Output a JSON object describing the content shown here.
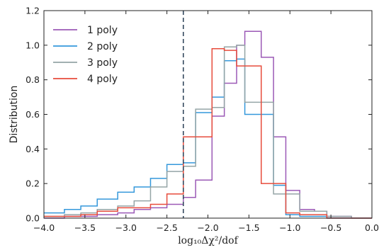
{
  "chart_data": {
    "type": "line",
    "title": "",
    "xlabel": "log₁₀Δχ²/dof",
    "ylabel": "Distribution",
    "xlim": [
      -4.0,
      0.0
    ],
    "ylim": [
      0.0,
      1.2
    ],
    "grid": false,
    "legend_position": "top-left",
    "x_ticks": [
      -4.0,
      -3.5,
      -3.0,
      -2.5,
      -2.0,
      -1.5,
      -1.0,
      -0.5,
      0.0
    ],
    "x_tick_labels": [
      "−4.0",
      "−3.5",
      "−3.0",
      "−2.5",
      "−2.0",
      "−1.5",
      "−1.0",
      "−0.5",
      "0.0"
    ],
    "y_ticks": [
      0.0,
      0.2,
      0.4,
      0.6,
      0.8,
      1.0,
      1.2
    ],
    "y_tick_labels": [
      "0.0",
      "0.2",
      "0.4",
      "0.6",
      "0.8",
      "1.0",
      "1.2"
    ],
    "vline": {
      "x": -2.3,
      "style": "dashed",
      "color": "#34495e"
    },
    "series": [
      {
        "name": "1 poly",
        "color": "#9b59b6",
        "edges": [
          -4.0,
          -3.75,
          -3.55,
          -3.35,
          -3.1,
          -2.9,
          -2.7,
          -2.5,
          -2.3,
          -2.15,
          -1.95,
          -1.8,
          -1.65,
          -1.55,
          -1.35,
          -1.2,
          -1.05,
          -0.88,
          -0.7,
          -0.55,
          -0.25,
          0.0
        ],
        "values": [
          0.0,
          0.01,
          0.01,
          0.02,
          0.03,
          0.05,
          0.06,
          0.08,
          0.12,
          0.22,
          0.59,
          0.78,
          1.0,
          1.08,
          0.93,
          0.47,
          0.16,
          0.05,
          0.04,
          0.01,
          0.0
        ]
      },
      {
        "name": "2 poly",
        "color": "#3498db",
        "edges": [
          -4.0,
          -3.75,
          -3.55,
          -3.35,
          -3.1,
          -2.9,
          -2.7,
          -2.5,
          -2.3,
          -2.15,
          -1.95,
          -1.8,
          -1.65,
          -1.55,
          -1.35,
          -1.2,
          -1.05,
          -0.88,
          -0.7,
          -0.55,
          -0.25,
          0.0
        ],
        "values": [
          0.03,
          0.05,
          0.07,
          0.11,
          0.15,
          0.18,
          0.23,
          0.31,
          0.32,
          0.61,
          0.7,
          0.91,
          0.92,
          0.6,
          0.6,
          0.19,
          0.02,
          0.01,
          0.01,
          0.0,
          0.0
        ]
      },
      {
        "name": "3 poly",
        "color": "#95a5a6",
        "edges": [
          -4.0,
          -3.75,
          -3.55,
          -3.35,
          -3.1,
          -2.9,
          -2.7,
          -2.5,
          -2.3,
          -2.15,
          -1.95,
          -1.8,
          -1.65,
          -1.55,
          -1.35,
          -1.2,
          -1.05,
          -0.88,
          -0.7,
          -0.55,
          -0.25,
          0.0
        ],
        "values": [
          0.01,
          0.02,
          0.03,
          0.05,
          0.07,
          0.1,
          0.18,
          0.27,
          0.3,
          0.63,
          0.64,
          0.99,
          1.0,
          0.67,
          0.67,
          0.14,
          0.14,
          0.04,
          0.04,
          0.01,
          0.0
        ]
      },
      {
        "name": "4 poly",
        "color": "#e74c3c",
        "edges": [
          -4.0,
          -3.75,
          -3.55,
          -3.35,
          -3.1,
          -2.9,
          -2.7,
          -2.5,
          -2.3,
          -2.15,
          -1.95,
          -1.8,
          -1.65,
          -1.55,
          -1.35,
          -1.2,
          -1.05,
          -0.88,
          -0.7,
          -0.55,
          -0.25,
          0.0
        ],
        "values": [
          0.01,
          0.01,
          0.02,
          0.04,
          0.06,
          0.06,
          0.08,
          0.14,
          0.47,
          0.47,
          0.98,
          0.97,
          0.88,
          0.88,
          0.2,
          0.2,
          0.03,
          0.02,
          0.02,
          0.0,
          0.0
        ]
      }
    ]
  }
}
